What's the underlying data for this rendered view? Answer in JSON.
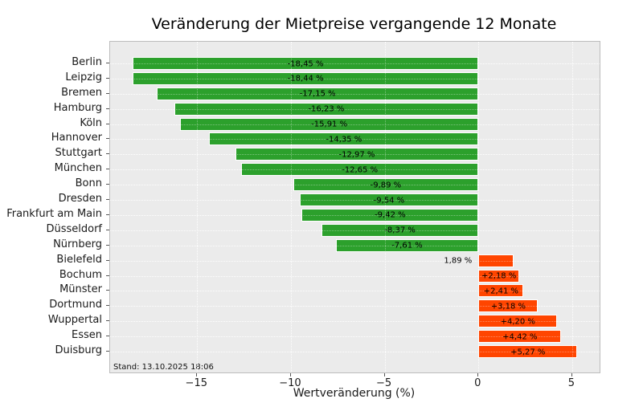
{
  "chart_data": {
    "type": "bar",
    "orientation": "horizontal",
    "title": "Veränderung der Mietpreise vergangende 12 Monate",
    "xlabel": "Wertveränderung (%)",
    "ylabel": "",
    "categories": [
      "Berlin",
      "Leipzig",
      "Bremen",
      "Hamburg",
      "Köln",
      "Hannover",
      "Stuttgart",
      "München",
      "Bonn",
      "Dresden",
      "Frankfurt am Main",
      "Düsseldorf",
      "Nürnberg",
      "Bielefeld",
      "Bochum",
      "Münster",
      "Dortmund",
      "Wuppertal",
      "Essen",
      "Duisburg"
    ],
    "values": [
      -18.45,
      -18.44,
      -17.15,
      -16.23,
      -15.91,
      -14.35,
      -12.97,
      -12.65,
      -9.89,
      -9.54,
      -9.42,
      -8.37,
      -7.61,
      1.89,
      2.18,
      2.41,
      3.18,
      4.2,
      4.42,
      5.27
    ],
    "bar_labels": [
      "-18,45 %",
      "-18,44 %",
      "-17,15 %",
      "-16,23 %",
      "-15,91 %",
      "-14,35 %",
      "-12,97 %",
      "-12,65 %",
      "-9,89 %",
      "-9,54 %",
      "-9,42 %",
      "-8,37 %",
      "-7,61 %",
      "1,89 %",
      "+2,18 %",
      "+2,41 %",
      "+3,18 %",
      "+4,20 %",
      "+4,42 %",
      "+5,27 %"
    ],
    "outside_label_indices": [
      13
    ],
    "xlim": [
      -19.64,
      6.46
    ],
    "xticks": [
      -15,
      -10,
      -5,
      0,
      5
    ],
    "xtick_labels": [
      "−15",
      "−10",
      "−5",
      "0",
      "5"
    ],
    "grid": true,
    "legend": "none",
    "annotation": "Stand: 13.10.2025 18:06",
    "colors": {
      "negative_bar": "#2ca02c",
      "positive_bar": "#ff4500",
      "bar_edge": "#ffffff",
      "plot_background": "#ebebeb",
      "grid": "#ffffff",
      "text": "#1a1a1a"
    }
  }
}
